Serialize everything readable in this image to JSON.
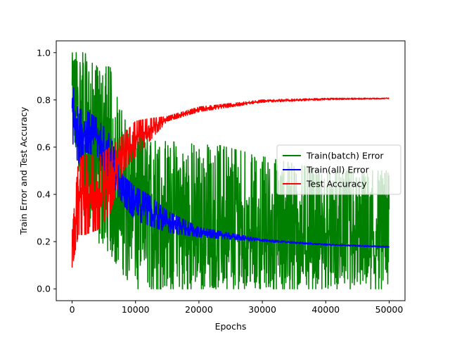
{
  "chart_data": {
    "type": "line",
    "title": "",
    "xlabel": "Epochs",
    "ylabel": "Train Error and Test Accuracy",
    "xlim": [
      -2500,
      52500
    ],
    "ylim": [
      -0.05,
      1.05
    ],
    "xticks": [
      0,
      10000,
      20000,
      30000,
      40000,
      50000
    ],
    "yticks": [
      0.0,
      0.2,
      0.4,
      0.6,
      0.8,
      1.0
    ],
    "xtick_labels": [
      "0",
      "10000",
      "20000",
      "30000",
      "40000",
      "50000"
    ],
    "ytick_labels": [
      "0.0",
      "0.2",
      "0.4",
      "0.6",
      "0.8",
      "1.0"
    ],
    "grid": false,
    "legend_position": "center-right",
    "series": [
      {
        "name": "Train(batch) Error",
        "color": "#008000",
        "style": "noisy-band",
        "x": [
          0,
          1000,
          2000,
          4000,
          6000,
          8000,
          10000,
          15000,
          20000,
          30000,
          40000,
          50000
        ],
        "low": [
          0.55,
          0.5,
          0.3,
          0.2,
          0.15,
          0.06,
          0.0,
          0.0,
          0.0,
          0.0,
          0.0,
          0.0
        ],
        "high": [
          1.0,
          1.0,
          1.0,
          0.94,
          0.94,
          0.75,
          0.69,
          0.62,
          0.63,
          0.56,
          0.5,
          0.5
        ],
        "center": [
          0.8,
          0.75,
          0.65,
          0.57,
          0.5,
          0.42,
          0.35,
          0.3,
          0.25,
          0.22,
          0.2,
          0.18
        ]
      },
      {
        "name": "Train(all) Error",
        "color": "#0000ff",
        "style": "noisy-band",
        "x": [
          0,
          500,
          1000,
          2000,
          4000,
          6000,
          8000,
          10000,
          12000,
          15000,
          20000,
          30000,
          40000,
          50000
        ],
        "low": [
          0.63,
          0.57,
          0.53,
          0.58,
          0.56,
          0.46,
          0.36,
          0.29,
          0.27,
          0.24,
          0.22,
          0.2,
          0.185,
          0.175
        ],
        "high": [
          0.9,
          0.8,
          0.76,
          0.76,
          0.72,
          0.65,
          0.48,
          0.43,
          0.4,
          0.33,
          0.26,
          0.21,
          0.19,
          0.18
        ],
        "center": [
          0.8,
          0.72,
          0.68,
          0.68,
          0.64,
          0.56,
          0.42,
          0.36,
          0.32,
          0.28,
          0.24,
          0.205,
          0.188,
          0.177
        ]
      },
      {
        "name": "Test Accuracy",
        "color": "#ff0000",
        "style": "noisy-band",
        "x": [
          0,
          1000,
          2000,
          4000,
          6000,
          8000,
          10000,
          12000,
          15000,
          20000,
          30000,
          40000,
          50000
        ],
        "low": [
          0.09,
          0.23,
          0.23,
          0.25,
          0.32,
          0.5,
          0.56,
          0.62,
          0.71,
          0.75,
          0.79,
          0.8,
          0.805
        ],
        "high": [
          0.24,
          0.55,
          0.57,
          0.56,
          0.6,
          0.65,
          0.71,
          0.72,
          0.73,
          0.77,
          0.8,
          0.807,
          0.808
        ],
        "center": [
          0.15,
          0.4,
          0.42,
          0.45,
          0.5,
          0.58,
          0.64,
          0.68,
          0.72,
          0.76,
          0.795,
          0.803,
          0.806
        ]
      }
    ]
  }
}
